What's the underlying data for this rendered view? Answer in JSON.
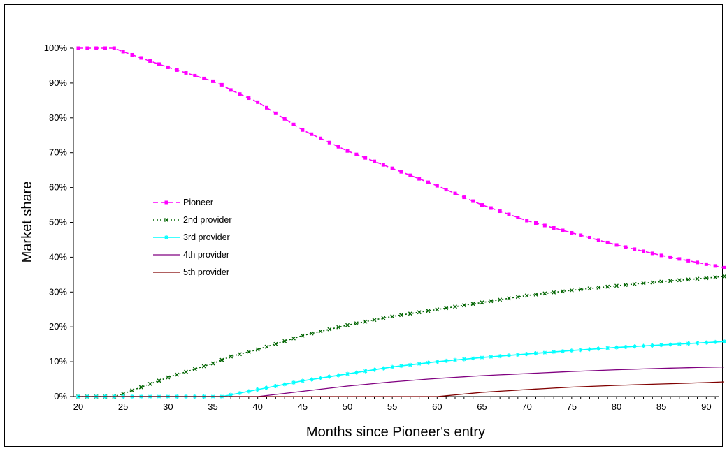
{
  "chart_data": {
    "type": "line",
    "title": "",
    "xlabel": "Months since Pioneer's entry",
    "ylabel": "Market share",
    "xlim": [
      20,
      92
    ],
    "ylim": [
      0,
      1
    ],
    "x_ticks": [
      20,
      25,
      30,
      35,
      40,
      45,
      50,
      55,
      60,
      65,
      70,
      75,
      80,
      85,
      90
    ],
    "y_ticks": [
      0,
      0.1,
      0.2,
      0.3,
      0.4,
      0.5,
      0.6,
      0.7,
      0.8,
      0.9,
      1.0
    ],
    "y_tick_labels": [
      "0%",
      "10%",
      "20%",
      "30%",
      "40%",
      "50%",
      "60%",
      "70%",
      "80%",
      "90%",
      "100%"
    ],
    "grid": false,
    "legend_position": "left-center",
    "series": [
      {
        "name": "Pioneer",
        "color": "#ff00ff",
        "style": "dashed",
        "marker": "square",
        "points": [
          [
            20,
            1.0
          ],
          [
            24,
            1.0
          ],
          [
            25,
            0.99
          ],
          [
            30,
            0.945
          ],
          [
            35,
            0.905
          ],
          [
            36,
            0.895
          ],
          [
            37,
            0.88
          ],
          [
            40,
            0.845
          ],
          [
            45,
            0.765
          ],
          [
            50,
            0.705
          ],
          [
            55,
            0.655
          ],
          [
            60,
            0.605
          ],
          [
            65,
            0.55
          ],
          [
            70,
            0.505
          ],
          [
            75,
            0.47
          ],
          [
            80,
            0.435
          ],
          [
            85,
            0.405
          ],
          [
            90,
            0.38
          ],
          [
            92,
            0.37
          ]
        ]
      },
      {
        "name": "2nd provider",
        "color": "#006400",
        "style": "dotted",
        "marker": "x",
        "points": [
          [
            20,
            0.0
          ],
          [
            24,
            0.0
          ],
          [
            25,
            0.008
          ],
          [
            30,
            0.055
          ],
          [
            35,
            0.095
          ],
          [
            36,
            0.105
          ],
          [
            37,
            0.115
          ],
          [
            40,
            0.135
          ],
          [
            45,
            0.175
          ],
          [
            50,
            0.205
          ],
          [
            55,
            0.23
          ],
          [
            60,
            0.25
          ],
          [
            65,
            0.27
          ],
          [
            70,
            0.29
          ],
          [
            75,
            0.305
          ],
          [
            80,
            0.318
          ],
          [
            85,
            0.33
          ],
          [
            90,
            0.34
          ],
          [
            92,
            0.345
          ]
        ]
      },
      {
        "name": "3rd provider",
        "color": "#00ffff",
        "style": "solid",
        "marker": "star",
        "points": [
          [
            20,
            0.0
          ],
          [
            36,
            0.0
          ],
          [
            37,
            0.005
          ],
          [
            40,
            0.02
          ],
          [
            45,
            0.045
          ],
          [
            50,
            0.065
          ],
          [
            55,
            0.085
          ],
          [
            60,
            0.1
          ],
          [
            65,
            0.112
          ],
          [
            70,
            0.122
          ],
          [
            75,
            0.132
          ],
          [
            80,
            0.141
          ],
          [
            85,
            0.148
          ],
          [
            90,
            0.155
          ],
          [
            92,
            0.158
          ]
        ]
      },
      {
        "name": "4th provider",
        "color": "#800080",
        "style": "solid",
        "marker": "none",
        "points": [
          [
            20,
            0.0
          ],
          [
            40,
            0.0
          ],
          [
            45,
            0.015
          ],
          [
            50,
            0.03
          ],
          [
            55,
            0.042
          ],
          [
            60,
            0.052
          ],
          [
            65,
            0.06
          ],
          [
            70,
            0.066
          ],
          [
            75,
            0.072
          ],
          [
            80,
            0.077
          ],
          [
            85,
            0.081
          ],
          [
            90,
            0.084
          ],
          [
            92,
            0.085
          ]
        ]
      },
      {
        "name": "5th provider",
        "color": "#800000",
        "style": "solid",
        "marker": "none",
        "points": [
          [
            20,
            0.0
          ],
          [
            60,
            0.0
          ],
          [
            65,
            0.012
          ],
          [
            70,
            0.02
          ],
          [
            75,
            0.027
          ],
          [
            80,
            0.032
          ],
          [
            85,
            0.036
          ],
          [
            90,
            0.04
          ],
          [
            92,
            0.042
          ]
        ]
      }
    ]
  }
}
